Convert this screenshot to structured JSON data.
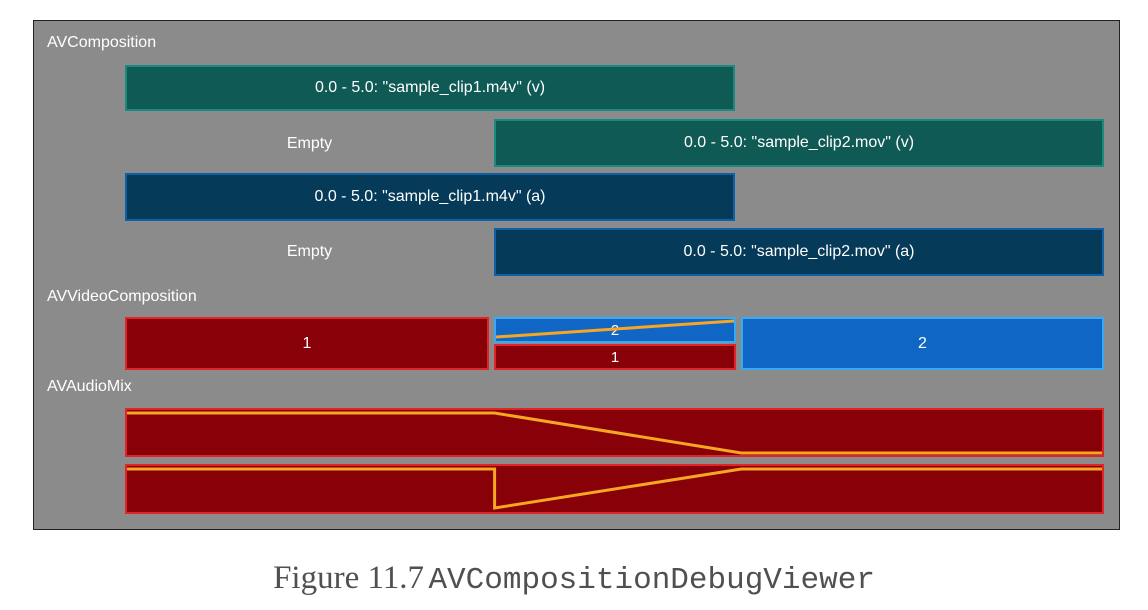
{
  "sections": {
    "composition": "AVComposition",
    "video_composition": "AVVideoComposition",
    "audio_mix": "AVAudioMix"
  },
  "composition_tracks": [
    {
      "segments": [
        {
          "kind": "video",
          "label": "0.0 - 5.0: \"sample_clip1.m4v\" (v)"
        }
      ]
    },
    {
      "segments": [
        {
          "kind": "empty",
          "label": "Empty"
        },
        {
          "kind": "video",
          "label": "0.0 - 5.0: \"sample_clip2.mov\" (v)"
        }
      ]
    },
    {
      "segments": [
        {
          "kind": "audio",
          "label": "0.0 - 5.0: \"sample_clip1.m4v\" (a)"
        }
      ]
    },
    {
      "segments": [
        {
          "kind": "empty",
          "label": "Empty"
        },
        {
          "kind": "audio",
          "label": "0.0 - 5.0: \"sample_clip2.mov\" (a)"
        }
      ]
    }
  ],
  "video_composition": {
    "instruction_1": {
      "layer": "1"
    },
    "transition": {
      "top_layer": "2",
      "bottom_layer": "1"
    },
    "instruction_2": {
      "layer": "2"
    }
  },
  "audio_mix": {
    "ramps": [
      {
        "name": "track-1-volume",
        "points": [
          [
            0,
            1
          ],
          [
            0.377,
            1
          ],
          [
            0.63,
            0
          ]
        ]
      },
      {
        "name": "track-2-volume",
        "points": [
          [
            0,
            1
          ],
          [
            0.377,
            1
          ],
          [
            0.377,
            0
          ],
          [
            0.63,
            1
          ],
          [
            1,
            1
          ]
        ]
      }
    ]
  },
  "colors": {
    "background": "#8b8b8b",
    "video_fill": "#0f5a54",
    "audio_fill": "#053a58",
    "instruction_red": "#880008",
    "instruction_blue": "#1066c4",
    "ramp_line": "#f5a623"
  },
  "caption": {
    "prefix": "Figure 11.7",
    "name": "AVCompositionDebugViewer"
  }
}
